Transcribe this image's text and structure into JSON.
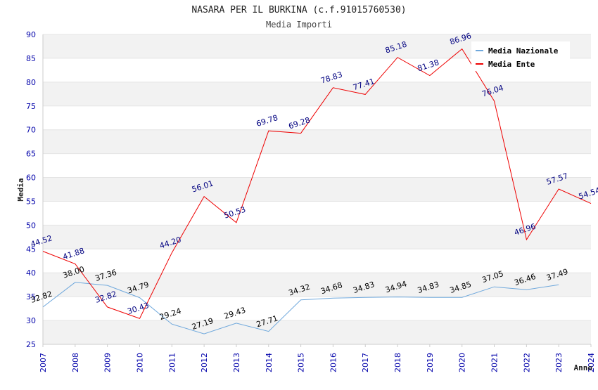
{
  "chart_data": {
    "type": "line",
    "title": "NASARA PER IL BURKINA (c.f.91015760530)",
    "subtitle": "Media Importi",
    "xlabel": "Anno",
    "ylabel": "Media",
    "ylim": [
      25,
      90
    ],
    "yticks": [
      25,
      30,
      35,
      40,
      45,
      50,
      55,
      60,
      65,
      70,
      75,
      80,
      85,
      90
    ],
    "x": [
      2007,
      2008,
      2009,
      2010,
      2011,
      2012,
      2013,
      2014,
      2015,
      2016,
      2017,
      2018,
      2019,
      2020,
      2021,
      2022,
      2023,
      2024
    ],
    "grid": "horizontal bands",
    "legend_position": "top-right",
    "series": [
      {
        "name": "Media Nazionale",
        "color": "#6fa8dc",
        "label_color": "#000000",
        "x": [
          2007,
          2008,
          2009,
          2010,
          2011,
          2012,
          2013,
          2014,
          2015,
          2016,
          2017,
          2018,
          2019,
          2020,
          2021,
          2022,
          2023
        ],
        "values": [
          32.82,
          38.0,
          37.36,
          34.79,
          29.24,
          27.19,
          29.43,
          27.71,
          34.32,
          34.68,
          34.83,
          34.94,
          34.83,
          34.85,
          37.05,
          36.46,
          37.49
        ]
      },
      {
        "name": "Media Ente",
        "color": "#ee0000",
        "label_color": "#000080",
        "x": [
          2007,
          2008,
          2009,
          2010,
          2011,
          2012,
          2013,
          2014,
          2015,
          2016,
          2017,
          2018,
          2019,
          2020,
          2021,
          2022,
          2023,
          2024
        ],
        "values": [
          44.52,
          41.88,
          32.82,
          30.43,
          44.2,
          56.01,
          50.53,
          69.78,
          69.28,
          78.83,
          77.41,
          85.18,
          81.38,
          86.96,
          76.04,
          46.96,
          57.57,
          54.54
        ]
      }
    ]
  }
}
